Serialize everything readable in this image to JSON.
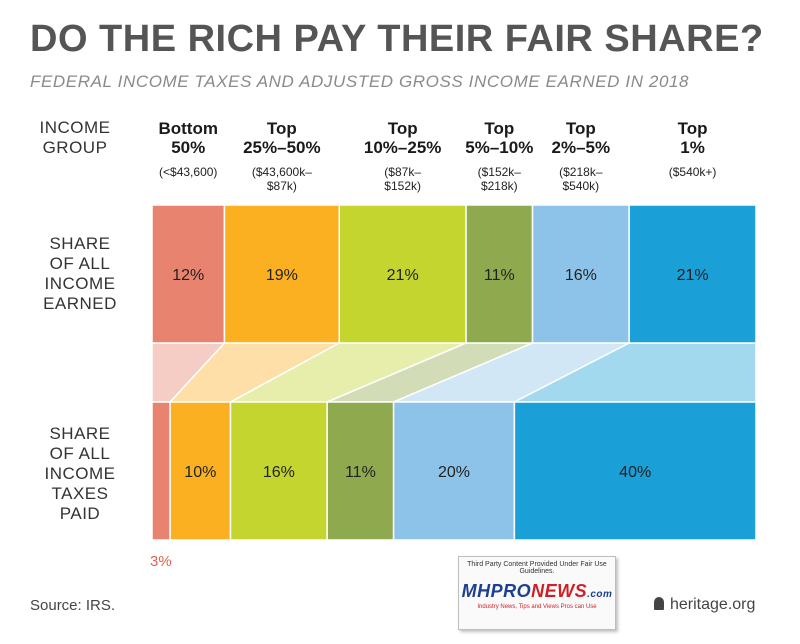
{
  "title": "DO THE RICH PAY THEIR FAIR SHARE?",
  "subtitle": "FEDERAL INCOME TAXES AND ADJUSTED GROSS INCOME EARNED IN 2018",
  "labels": {
    "income_group": [
      "INCOME",
      "GROUP"
    ],
    "share_income": [
      "SHARE",
      "OF ALL",
      "INCOME",
      "EARNED"
    ],
    "share_taxes": [
      "SHARE",
      "OF ALL",
      "INCOME",
      "TAXES",
      "PAID"
    ]
  },
  "chart_data": {
    "type": "bar",
    "orientation": "horizontal-stacked",
    "categories": [
      "Bottom 50%",
      "Top 25%–50%",
      "Top 10%–25%",
      "Top 5%–10%",
      "Top 2%–5%",
      "Top 1%"
    ],
    "category_heads": [
      [
        "Bottom",
        "50%"
      ],
      [
        "Top",
        "25%–50%"
      ],
      [
        "Top",
        "10%–25%"
      ],
      [
        "Top",
        "5%–10%"
      ],
      [
        "Top",
        "2%–5%"
      ],
      [
        "Top",
        "1%"
      ]
    ],
    "category_ranges": [
      [
        "(<$43,600)"
      ],
      [
        "($43,600k–",
        "$87k)"
      ],
      [
        "($87k–",
        "$152k)"
      ],
      [
        "($152k–",
        "$218k)"
      ],
      [
        "($218k–",
        "$540k)"
      ],
      [
        "($540k+)"
      ]
    ],
    "colors": [
      "#e8836f",
      "#fbb022",
      "#c3d52e",
      "#8fa94e",
      "#8dc3e9",
      "#1a9fd6"
    ],
    "series": [
      {
        "name": "SHARE OF ALL INCOME EARNED",
        "values": [
          12,
          19,
          21,
          11,
          16,
          21
        ],
        "labels": [
          "12%",
          "19%",
          "21%",
          "11%",
          "16%",
          "21%"
        ]
      },
      {
        "name": "SHARE OF ALL INCOME TAXES PAID",
        "values": [
          3,
          10,
          16,
          11,
          20,
          40
        ],
        "labels": [
          "3%",
          "10%",
          "16%",
          "11%",
          "20%",
          "40%"
        ]
      }
    ]
  },
  "footer": {
    "source": "Source: IRS.",
    "heritage": "heritage.org",
    "notice_text": "Third Party Content Provided Under Fair Use Guidelines.",
    "notice_logo_a": "MHPRO",
    "notice_logo_b": "NEWS",
    "notice_logo_c": ".com",
    "notice_tag": "Industry News, Tips and Views Pros can Use"
  }
}
